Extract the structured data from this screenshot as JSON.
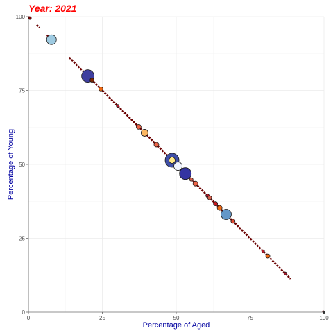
{
  "chart_data": {
    "type": "scatter",
    "title": "Year: 2021",
    "xlabel": "Percentage of Aged",
    "ylabel": "Percentage of Young",
    "xlim": [
      0,
      100
    ],
    "ylim": [
      0,
      100
    ],
    "xticks": [
      "0",
      "25",
      "50",
      "75",
      "100"
    ],
    "yticks": [
      "0",
      "25",
      "50",
      "75",
      "100"
    ],
    "grid": true,
    "legend": "none",
    "colors": {
      "title": "#ff0000",
      "axis_title": "#0000a0",
      "trend_line": "#6b0000"
    },
    "lines": [
      {
        "x": [
          0,
          0.5
        ],
        "y": [
          100,
          99.5
        ]
      },
      {
        "x": [
          2.8,
          3.8
        ],
        "y": [
          97.2,
          96.2
        ]
      },
      {
        "x": [
          6.3,
          6.6
        ],
        "y": [
          93.7,
          93.4
        ]
      },
      {
        "x": [
          13.8,
          88.7
        ],
        "y": [
          86.2,
          11.3
        ]
      },
      {
        "x": [
          99.5,
          100
        ],
        "y": [
          0.5,
          0
        ]
      }
    ],
    "points": [
      {
        "x": 0.5,
        "y": 99.5,
        "size": 2,
        "color": "#800000"
      },
      {
        "x": 7.8,
        "y": 92.2,
        "size": 7,
        "color": "#9ecae1"
      },
      {
        "x": 20.1,
        "y": 79.9,
        "size": 9,
        "color": "#3f3f9f"
      },
      {
        "x": 21.5,
        "y": 78.5,
        "size": 3,
        "color": "#7f2704"
      },
      {
        "x": 24.5,
        "y": 75.5,
        "size": 3,
        "color": "#f16913"
      },
      {
        "x": 30.2,
        "y": 69.8,
        "size": 2,
        "color": "#b2182b"
      },
      {
        "x": 37.3,
        "y": 62.7,
        "size": 3.5,
        "color": "#ef6548"
      },
      {
        "x": 39.3,
        "y": 60.7,
        "size": 5,
        "color": "#fdb863"
      },
      {
        "x": 43.3,
        "y": 56.7,
        "size": 3.5,
        "color": "#ef6548"
      },
      {
        "x": 48.6,
        "y": 51.4,
        "size": 10,
        "color": "#3f4fa7"
      },
      {
        "x": 48.6,
        "y": 51.4,
        "size": 4.5,
        "color": "#ffe88a"
      },
      {
        "x": 50.6,
        "y": 49.4,
        "size": 6,
        "color": "#eff3ff"
      },
      {
        "x": 53.1,
        "y": 46.9,
        "size": 8.5,
        "color": "#3434a2"
      },
      {
        "x": 55.1,
        "y": 44.9,
        "size": 2.5,
        "color": "#d6604d"
      },
      {
        "x": 56.5,
        "y": 43.5,
        "size": 3.5,
        "color": "#ef6548"
      },
      {
        "x": 60.6,
        "y": 39.4,
        "size": 2.5,
        "color": "#b2182b"
      },
      {
        "x": 61.3,
        "y": 38.7,
        "size": 3,
        "color": "#d6604d"
      },
      {
        "x": 63.3,
        "y": 36.7,
        "size": 3,
        "color": "#cb181d"
      },
      {
        "x": 64.7,
        "y": 35.3,
        "size": 3.5,
        "color": "#f16913"
      },
      {
        "x": 66.9,
        "y": 33.1,
        "size": 7.5,
        "color": "#6397c8"
      },
      {
        "x": 69.2,
        "y": 30.8,
        "size": 3,
        "color": "#e34a33"
      },
      {
        "x": 79.4,
        "y": 20.6,
        "size": 2,
        "color": "#b2182b"
      },
      {
        "x": 81.0,
        "y": 19.0,
        "size": 3,
        "color": "#f16913"
      },
      {
        "x": 86.9,
        "y": 13.1,
        "size": 2,
        "color": "#b2182b"
      },
      {
        "x": 100,
        "y": 0,
        "size": 1.5,
        "color": "#333333"
      }
    ]
  }
}
